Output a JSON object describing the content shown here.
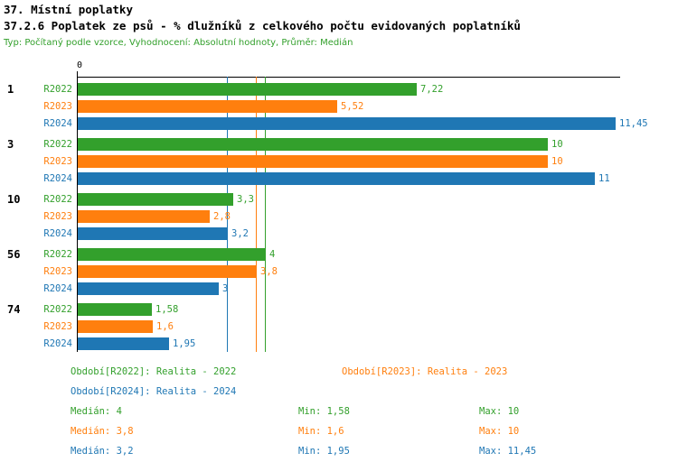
{
  "header": {
    "title_line1": "37. Místní poplatky",
    "title_line2": "37.2.6 Poplatek ze psů - % dlužníků z celkového počtu evidovaných poplatníků",
    "subtitle": "Typ: Počítaný podle vzorce, Vyhodnocení: Absolutní hodnoty, Průměr: Medián"
  },
  "colors": {
    "green": "#33a02c",
    "orange": "#ff7f0e",
    "blue": "#1f77b4",
    "axis": "#000000"
  },
  "chart_data": {
    "type": "bar",
    "orientation": "horizontal",
    "x_axis": {
      "zero_label": "0",
      "xlim": [
        0,
        11.6
      ]
    },
    "categories": [
      "1",
      "3",
      "10",
      "56",
      "74"
    ],
    "series": [
      {
        "name": "R2022",
        "color": "#33a02c",
        "values": [
          7.22,
          10,
          3.3,
          4,
          1.58
        ],
        "value_labels": [
          "7,22",
          "10",
          "3,3",
          "4",
          "1,58"
        ]
      },
      {
        "name": "R2023",
        "color": "#ff7f0e",
        "values": [
          5.52,
          10,
          2.8,
          3.8,
          1.6
        ],
        "value_labels": [
          "5,52",
          "10",
          "2,8",
          "3,8",
          "1,6"
        ]
      },
      {
        "name": "R2024",
        "color": "#1f77b4",
        "values": [
          11.45,
          11,
          3.2,
          3,
          1.95
        ],
        "value_labels": [
          "11,45",
          "11",
          "3,2",
          "3",
          "1,95"
        ]
      }
    ],
    "median_lines": [
      {
        "series": "R2022",
        "value": 4,
        "color": "#33a02c"
      },
      {
        "series": "R2023",
        "value": 3.8,
        "color": "#ff7f0e"
      },
      {
        "series": "R2024",
        "value": 3.2,
        "color": "#1f77b4"
      }
    ]
  },
  "legend": {
    "items": [
      {
        "label": "Období[R2022]: Realita - 2022",
        "color": "#33a02c"
      },
      {
        "label": "Období[R2023]: Realita - 2023",
        "color": "#ff7f0e"
      },
      {
        "label": "Období[R2024]: Realita - 2024",
        "color": "#1f77b4"
      }
    ]
  },
  "stats": {
    "rows": [
      {
        "median": "Medián: 4",
        "min": "Min: 1,58",
        "max": "Max: 10",
        "color": "#33a02c"
      },
      {
        "median": "Medián: 3,8",
        "min": "Min: 1,6",
        "max": "Max: 10",
        "color": "#ff7f0e"
      },
      {
        "median": "Medián: 3,2",
        "min": "Min: 1,95",
        "max": "Max: 11,45",
        "color": "#1f77b4"
      }
    ]
  }
}
